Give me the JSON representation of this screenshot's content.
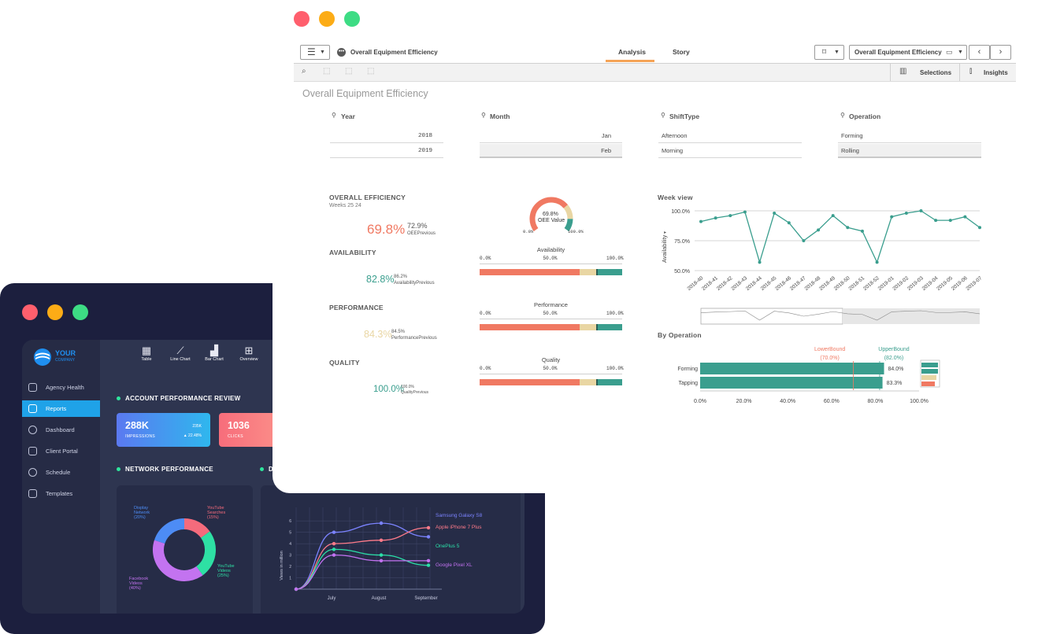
{
  "colors": {
    "red_dot": "#ff5f6d",
    "yellow_dot": "#fcac16",
    "green_dot": "#3ddc84",
    "accent": "#f07962",
    "teal": "#3a9e8e",
    "beige": "#e9d6a3"
  },
  "dark": {
    "logo": {
      "line1": "YOUR",
      "line2": "COMPANY"
    },
    "top_nav": [
      {
        "label": "Table",
        "icon": "table-icon"
      },
      {
        "label": "Line Chart",
        "icon": "line-chart-icon"
      },
      {
        "label": "Bar Chart",
        "icon": "bar-chart-icon"
      },
      {
        "label": "Overview",
        "icon": "grid-icon"
      }
    ],
    "sidebar": [
      {
        "label": "Agency Health",
        "icon": "heart-icon"
      },
      {
        "label": "Reports",
        "icon": "reports-icon",
        "active": true
      },
      {
        "label": "Dashboard",
        "icon": "gauge-icon"
      },
      {
        "label": "Client Portal",
        "icon": "portal-icon"
      },
      {
        "label": "Schedule",
        "icon": "clock-icon"
      },
      {
        "label": "Templates",
        "icon": "templates-icon"
      }
    ],
    "account_title": "ACCOUNT PERFORMANCE REVIEW",
    "kpi1": {
      "value": "288K",
      "label": "IMPRESSIONS",
      "r1": "235K",
      "r2": "▲ 22.48%"
    },
    "kpi2": {
      "value": "1036",
      "label": "CLICKS"
    },
    "network_title": "NETWORK PERFORMANCE",
    "network_title2": "D",
    "donut": [
      {
        "label": "YouTube\nSearches\n(15%)",
        "color": "#f56b7c",
        "share": 15
      },
      {
        "label": "YouTube\nVideos\n(25%)",
        "color": "#2ee0a4",
        "share": 25
      },
      {
        "label": "Facebook\nVideos\n(40%)",
        "color": "#c373f0",
        "share": 40
      },
      {
        "label": "Display\nNetwork\n(20%)",
        "color": "#4d8cf5",
        "share": 20
      }
    ],
    "views_chart": {
      "ylabel": "Views in million",
      "xlabels": [
        "July",
        "August",
        "September"
      ],
      "yticks": [
        "6",
        "5",
        "4",
        "3",
        "2",
        "1"
      ],
      "series": [
        {
          "name": "Samsung Galaxy S8",
          "color": "#7b83ff",
          "values": [
            0,
            5,
            5.8,
            4.6
          ]
        },
        {
          "name": "Apple iPhone 7 Plus",
          "color": "#ff7b8a",
          "values": [
            0,
            4,
            4.3,
            5.4
          ]
        },
        {
          "name": "OnePlus 5",
          "color": "#2be0a8",
          "values": [
            0,
            3.5,
            3,
            2.1
          ]
        },
        {
          "name": "Google Pixel XL",
          "color": "#c372f2",
          "values": [
            0,
            3,
            2.5,
            2.5
          ]
        }
      ]
    }
  },
  "qlik": {
    "app_title": "Overall Equipment Efficiency",
    "tabs": [
      "Analysis",
      "Story"
    ],
    "sheet_selector": "Overall Equipment Efficiency",
    "toolbar_right": {
      "selections": "Selections",
      "insights": "Insights"
    },
    "sheet_title": "Overall Equipment Efficiency",
    "filters": [
      {
        "title": "Year",
        "items": [
          "2018",
          "2019"
        ],
        "align": "right"
      },
      {
        "title": "Month",
        "items": [
          "Jan",
          "Feb"
        ],
        "align": "right"
      },
      {
        "title": "ShiftType",
        "items": [
          "Afternoon",
          "Morning"
        ],
        "align": "left"
      },
      {
        "title": "Operation",
        "items": [
          "Forming",
          "Rolling"
        ],
        "align": "left"
      }
    ],
    "overall": {
      "title": "OVERALL EFFICIENCY",
      "subtitle": "Weeks 25 24",
      "value": "69.8%",
      "prev_value": "72.9%",
      "prev_label": "OEEPrevious",
      "color": "#f07962"
    },
    "availability": {
      "title": "AVAILABILITY",
      "value": "82.8%",
      "prev_value": "86.2%",
      "prev_label": "AvailabilityPrevious",
      "color": "#3a9e8e"
    },
    "performance": {
      "title": "PERFORMANCE",
      "value": "84.3%",
      "prev_value": "84.5%",
      "prev_label": "PerformancePrevious",
      "color": "#e9d6a3"
    },
    "quality": {
      "title": "QUALITY",
      "value": "100.0%",
      "prev_value": "100.0%",
      "prev_label": "QualityPrevious",
      "color": "#3a9e8e"
    },
    "gauge": {
      "value": "69.8%",
      "label": "OEE Value",
      "min": "0.0%",
      "max": "100.0%",
      "fraction": 0.698
    },
    "bullet_ticks": [
      "0.0%",
      "50.0%",
      "100.0%"
    ],
    "bullets": [
      {
        "title": "Availability",
        "red": 0.7,
        "beige": 0.12,
        "teal": 0.18,
        "marker": 0.5
      },
      {
        "title": "Performance",
        "red": 0.7,
        "beige": 0.12,
        "teal": 0.18,
        "marker": 0.5
      },
      {
        "title": "Quality",
        "red": 0.7,
        "beige": 0.12,
        "teal": 0.18,
        "marker": 0.5
      }
    ]
  },
  "chart_data": [
    {
      "type": "line",
      "title": "Week view",
      "ylabel": "Availability",
      "ytick_labels": [
        "100.0%",
        "75.0%",
        "50.0%"
      ],
      "ylim": [
        50,
        100
      ],
      "categories": [
        "2018-40",
        "2018-41",
        "2018-42",
        "2018-43",
        "2018-44",
        "2018-45",
        "2018-46",
        "2018-47",
        "2018-48",
        "2018-49",
        "2018-50",
        "2018-51",
        "2018-52",
        "2019-01",
        "2019-02",
        "2019-03",
        "2019-04",
        "2019-05",
        "2019-06",
        "2019-07"
      ],
      "values": [
        91,
        94,
        96,
        99,
        57,
        98,
        90,
        75,
        84,
        96,
        86,
        83,
        57,
        95,
        98,
        100,
        92,
        92,
        95,
        86
      ],
      "color": "#3a9e8e",
      "grid": true
    },
    {
      "type": "bar",
      "orientation": "horizontal",
      "title": "By Operation",
      "categories": [
        "Forming",
        "Tapping"
      ],
      "values": [
        84.0,
        83.3
      ],
      "value_labels": [
        "84.0%",
        "83.3%"
      ],
      "xtick_labels": [
        "0.0%",
        "20.0%",
        "40.0%",
        "60.0%",
        "80.0%",
        "100.0%"
      ],
      "xlim": [
        0,
        100
      ],
      "reference_lines": [
        {
          "label": "LowerBound",
          "value_label": "(70.0%)",
          "value": 70,
          "color": "#f07962"
        },
        {
          "label": "UpperBound",
          "value_label": "(82.0%)",
          "value": 82,
          "color": "#3a9e8e"
        }
      ],
      "color": "#3a9e8e"
    }
  ]
}
